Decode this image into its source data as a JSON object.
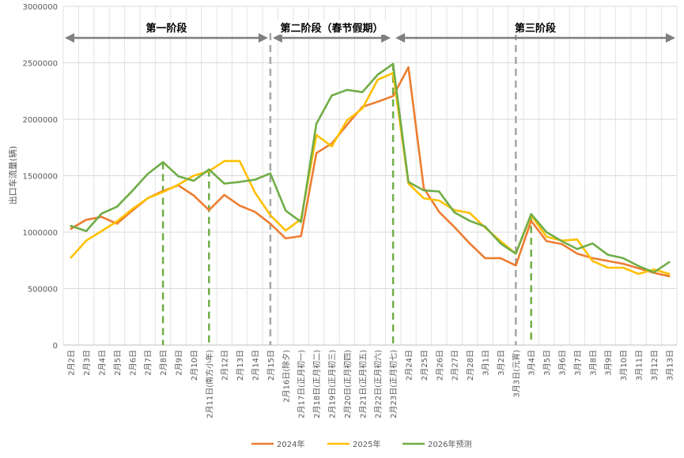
{
  "chart_data": {
    "type": "line",
    "ylabel": "出口车流量(辆)",
    "ylim": [
      0,
      3000000
    ],
    "yticks": [
      0,
      500000,
      1000000,
      1500000,
      2000000,
      2500000,
      3000000
    ],
    "ytick_labels": [
      "0",
      "500000",
      "1000000",
      "1500000",
      "2000000",
      "2500000",
      "3000000"
    ],
    "grid": true,
    "legend_position": "bottom",
    "categories": [
      "2月2日",
      "2月3日",
      "2月4日",
      "2月5日",
      "2月6日",
      "2月7日",
      "2月8日",
      "2月9日",
      "2月10日",
      "2月11日(南方小年)",
      "2月12日",
      "2月13日",
      "2月14日",
      "2月15日",
      "2月16日(除夕)",
      "2月17日(正月初一)",
      "2月18日(正月初二)",
      "2月19日(正月初三)",
      "2月20日(正月初四)",
      "2月21日(正月初五)",
      "2月22日(正月初六)",
      "2月23日(正月初七)",
      "2月24日",
      "2月25日",
      "2月26日",
      "2月27日",
      "2月28日",
      "3月1日",
      "3月2日",
      "3月3日(元宵)",
      "3月4日",
      "3月5日",
      "3月6日",
      "3月7日",
      "3月8日",
      "3月9日",
      "3月10日",
      "3月11日",
      "3月12日",
      "3月13日"
    ],
    "series": [
      {
        "name": "2024年",
        "color": "#ED7D31",
        "values": [
          1030000,
          1110000,
          1135000,
          1075000,
          1190000,
          1300000,
          1365000,
          1415000,
          1325000,
          1195000,
          1330000,
          1235000,
          1180000,
          1075000,
          945000,
          965000,
          1700000,
          1785000,
          1950000,
          2110000,
          2155000,
          2205000,
          2460000,
          1390000,
          1180000,
          1045000,
          900000,
          770000,
          770000,
          705000,
          1100000,
          920000,
          895000,
          810000,
          770000,
          745000,
          720000,
          680000,
          640000,
          610000
        ]
      },
      {
        "name": "2025年",
        "color": "#FFC000",
        "values": [
          775000,
          925000,
          1010000,
          1095000,
          1205000,
          1300000,
          1355000,
          1420000,
          1500000,
          1540000,
          1630000,
          1630000,
          1350000,
          1150000,
          1015000,
          1115000,
          1860000,
          1760000,
          1990000,
          2095000,
          2350000,
          2410000,
          1430000,
          1300000,
          1280000,
          1195000,
          1170000,
          1040000,
          920000,
          810000,
          1150000,
          960000,
          925000,
          935000,
          745000,
          685000,
          685000,
          630000,
          670000,
          630000
        ]
      },
      {
        "name": "2026年预测",
        "color": "#70AD47",
        "values": [
          1055000,
          1010000,
          1165000,
          1225000,
          1365000,
          1515000,
          1620000,
          1495000,
          1455000,
          1555000,
          1430000,
          1445000,
          1465000,
          1520000,
          1190000,
          1090000,
          1960000,
          2210000,
          2260000,
          2240000,
          2395000,
          2490000,
          1445000,
          1370000,
          1360000,
          1175000,
          1100000,
          1050000,
          900000,
          810000,
          1160000,
          1000000,
          920000,
          850000,
          900000,
          800000,
          770000,
          700000,
          645000,
          735000
        ]
      }
    ],
    "phases": [
      {
        "label": "第一阶段"
      },
      {
        "label": "第二阶段（春节假期）"
      },
      {
        "label": "第三阶段"
      }
    ],
    "phase_dividers": [
      {
        "category": "2月15日",
        "color": "#A6A6A6"
      },
      {
        "category": "3月3日(元宵)",
        "color": "#A6A6A6"
      }
    ],
    "peak_markers": [
      {
        "category": "2月8日",
        "color": "#70AD47"
      },
      {
        "category": "2月11日(南方小年)",
        "color": "#70AD47"
      },
      {
        "category": "2月23日(正月初七)",
        "color": "#70AD47"
      },
      {
        "category": "3月4日",
        "color": "#70AD47"
      }
    ]
  }
}
